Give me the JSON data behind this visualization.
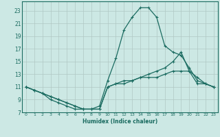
{
  "title": "",
  "xlabel": "Humidex (Indice chaleur)",
  "bg_color": "#cce8e4",
  "grid_color": "#b0c8c4",
  "line_color": "#1a6b60",
  "xlim": [
    -0.5,
    23.5
  ],
  "ylim": [
    7,
    24.5
  ],
  "xticks": [
    0,
    1,
    2,
    3,
    4,
    5,
    6,
    7,
    8,
    9,
    10,
    11,
    12,
    13,
    14,
    15,
    16,
    17,
    18,
    19,
    20,
    21,
    22,
    23
  ],
  "yticks": [
    7,
    9,
    11,
    13,
    15,
    17,
    19,
    21,
    23
  ],
  "line1_x": [
    0,
    1,
    2,
    3,
    4,
    5,
    6,
    7,
    8,
    9,
    10,
    11,
    12,
    13,
    14,
    15,
    16,
    17,
    18,
    19,
    20,
    21,
    22,
    23
  ],
  "line1_y": [
    11,
    10.5,
    10,
    9,
    8.5,
    8,
    7.5,
    7.5,
    7.5,
    7.5,
    11,
    11.5,
    11.5,
    12,
    12.5,
    12.5,
    12.5,
    13,
    13.5,
    13.5,
    13.5,
    11.5,
    11.5,
    11
  ],
  "line2_x": [
    0,
    1,
    2,
    3,
    4,
    5,
    6,
    7,
    8,
    9,
    10,
    11,
    12,
    13,
    14,
    15,
    16,
    17,
    18,
    19,
    20,
    21,
    22,
    23
  ],
  "line2_y": [
    11,
    10.5,
    10,
    9.5,
    9,
    8.5,
    8,
    7.5,
    7.5,
    8,
    12,
    15.5,
    20,
    22,
    23.5,
    23.5,
    22,
    17.5,
    16.5,
    16,
    14,
    12,
    11.5,
    11
  ],
  "line3_x": [
    0,
    1,
    2,
    3,
    4,
    5,
    6,
    7,
    8,
    9,
    10,
    11,
    12,
    13,
    14,
    15,
    16,
    17,
    18,
    19,
    20,
    21,
    22,
    23
  ],
  "line3_y": [
    11,
    10.5,
    10,
    9.5,
    9,
    8.5,
    8,
    7.5,
    7.5,
    7.5,
    11,
    11.5,
    12,
    12,
    12.5,
    13,
    13.5,
    14,
    15,
    16.5,
    13.5,
    12.5,
    11.5,
    11
  ]
}
